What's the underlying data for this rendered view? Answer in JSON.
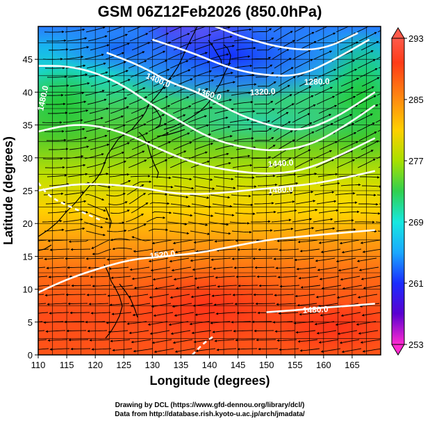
{
  "title": "GSM 06Z12Feb2026 (850.0hPa)",
  "x_axis": {
    "label": "Longitude (degrees)",
    "range": [
      110,
      170
    ],
    "ticks": [
      "110",
      "115",
      "120",
      "125",
      "130",
      "135",
      "140",
      "145",
      "150",
      "155",
      "160",
      "165"
    ]
  },
  "y_axis": {
    "label": "Latitude (degrees)",
    "range": [
      0,
      50
    ],
    "ticks": [
      "0",
      "5",
      "10",
      "15",
      "20",
      "25",
      "30",
      "35",
      "40",
      "45"
    ]
  },
  "colorbar": {
    "ticks": [
      "293",
      "285",
      "277",
      "269",
      "261",
      "253"
    ],
    "range": [
      253,
      293
    ],
    "colors": [
      "#ff2ad0",
      "#5a00d0",
      "#1a2cff",
      "#1aa8ff",
      "#16e8e0",
      "#30d050",
      "#a8e000",
      "#ffd000",
      "#ff8c10",
      "#ff4a18",
      "#ff5a4a"
    ]
  },
  "contour_labels": [
    {
      "text": "1400.0"
    },
    {
      "text": "1360.0"
    },
    {
      "text": "1320.0"
    },
    {
      "text": "1280.0"
    },
    {
      "text": "1440.0"
    },
    {
      "text": "1480.0"
    },
    {
      "text": "1520.0"
    },
    {
      "text": "1480.0"
    },
    {
      "text": "1480.0"
    }
  ],
  "credits": [
    "Drawing by DCL (https://www.gfd-dennou.org/library/dcl/)",
    "Data from http://database.rish.kyoto-u.ac.jp/arch/jmadata/"
  ],
  "chart_data": {
    "type": "heatmap",
    "title": "GSM 06Z12Feb2026 (850.0hPa)",
    "xlabel": "Longitude (degrees)",
    "ylabel": "Latitude (degrees)",
    "xlim": [
      110,
      170
    ],
    "ylim": [
      0,
      50
    ],
    "colorbar_range": [
      253,
      293
    ],
    "contours": [
      {
        "value": 1280,
        "points": [
          [
            141,
            50
          ],
          [
            147,
            48
          ],
          [
            154,
            46.5
          ],
          [
            160,
            46.5
          ],
          [
            166,
            49
          ]
        ]
      },
      {
        "value": 1320,
        "points": [
          [
            130,
            48
          ],
          [
            137,
            46
          ],
          [
            144,
            43.5
          ],
          [
            150,
            42.5
          ],
          [
            156,
            42.5
          ],
          [
            162,
            45
          ],
          [
            168,
            48
          ]
        ]
      },
      {
        "value": 1360,
        "points": [
          [
            122,
            46
          ],
          [
            128,
            44
          ],
          [
            133,
            41.5
          ],
          [
            138,
            40
          ],
          [
            144,
            37
          ],
          [
            150,
            35
          ],
          [
            156,
            34
          ],
          [
            162,
            36
          ],
          [
            169,
            40
          ]
        ]
      },
      {
        "value": 1400,
        "points": [
          [
            110,
            44
          ],
          [
            115,
            44
          ],
          [
            120,
            43
          ],
          [
            125,
            41
          ],
          [
            130,
            38
          ],
          [
            135,
            35.5
          ],
          [
            140,
            33
          ],
          [
            146,
            31.5
          ],
          [
            152,
            31
          ],
          [
            158,
            32
          ],
          [
            164,
            35
          ],
          [
            169,
            38
          ]
        ]
      },
      {
        "value": 1440,
        "points": [
          [
            110,
            34
          ],
          [
            115,
            35
          ],
          [
            120,
            35
          ],
          [
            126,
            33.5
          ],
          [
            132,
            31
          ],
          [
            138,
            29
          ],
          [
            144,
            28
          ],
          [
            150,
            27.5
          ],
          [
            156,
            28
          ],
          [
            162,
            30
          ],
          [
            169,
            33
          ]
        ]
      },
      {
        "value": 1480,
        "points": [
          [
            110,
            25
          ],
          [
            116,
            26
          ],
          [
            122,
            26
          ],
          [
            128,
            25.5
          ],
          [
            134,
            24.5
          ],
          [
            140,
            24.5
          ],
          [
            146,
            25
          ],
          [
            152,
            25.5
          ],
          [
            158,
            26
          ],
          [
            164,
            27
          ],
          [
            169,
            28
          ]
        ]
      },
      {
        "value": 1520,
        "points": [
          [
            110,
            9.5
          ],
          [
            115,
            11.5
          ],
          [
            120,
            13
          ],
          [
            126,
            14.5
          ],
          [
            132,
            15
          ],
          [
            138,
            15.5
          ],
          [
            144,
            16.5
          ],
          [
            150,
            17.5
          ],
          [
            156,
            18
          ],
          [
            162,
            18.5
          ],
          [
            169,
            19
          ]
        ]
      },
      {
        "value": 1480,
        "points": [
          [
            150,
            6.5
          ],
          [
            155,
            6.8
          ],
          [
            160,
            7.2
          ],
          [
            165,
            7.5
          ],
          [
            169,
            7.8
          ]
        ]
      },
      {
        "value": 1480,
        "points": [
          [
            137,
            0
          ],
          [
            139,
            1.8
          ],
          [
            141,
            3
          ]
        ]
      },
      {
        "value": 1480,
        "points": [
          [
            110,
            26.2
          ],
          [
            112,
            24
          ],
          [
            117,
            22
          ],
          [
            121,
            20.5
          ]
        ]
      }
    ]
  }
}
